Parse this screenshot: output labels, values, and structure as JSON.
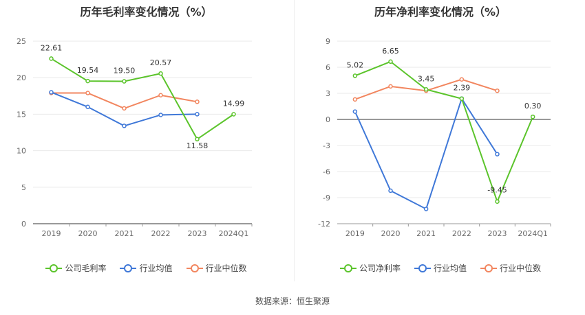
{
  "colors": {
    "company": "#5bc42b",
    "industry_avg": "#3f78d8",
    "industry_median": "#f2865f",
    "grid": "#e8e8e8",
    "axis": "#666666"
  },
  "source": "数据来源：恒生聚源",
  "chart_data": [
    {
      "type": "line",
      "title": "历年毛利率变化情况（%）",
      "categories": [
        "2019",
        "2020",
        "2021",
        "2022",
        "2023",
        "2024Q1"
      ],
      "ylim": [
        0,
        25
      ],
      "yticks": [
        0,
        5,
        10,
        15,
        20,
        25
      ],
      "grid": true,
      "legend_position": "bottom",
      "series": [
        {
          "name": "公司毛利率",
          "color_key": "company",
          "values": [
            22.61,
            19.54,
            19.5,
            20.57,
            11.58,
            14.99
          ],
          "labels": [
            "22.61",
            "19.54",
            "19.50",
            "20.57",
            "11.58",
            "14.99"
          ]
        },
        {
          "name": "行业均值",
          "color_key": "industry_avg",
          "values": [
            18.0,
            16.0,
            13.4,
            14.9,
            15.0,
            null
          ]
        },
        {
          "name": "行业中位数",
          "color_key": "industry_median",
          "values": [
            17.9,
            17.9,
            15.8,
            17.6,
            16.7,
            null
          ]
        }
      ]
    },
    {
      "type": "line",
      "title": "历年净利率变化情况（%）",
      "categories": [
        "2019",
        "2020",
        "2021",
        "2022",
        "2023",
        "2024Q1"
      ],
      "ylim": [
        -12,
        9
      ],
      "yticks": [
        -12,
        -9,
        -6,
        -3,
        0,
        3,
        6,
        9
      ],
      "grid": true,
      "legend_position": "bottom",
      "series": [
        {
          "name": "公司净利率",
          "color_key": "company",
          "values": [
            5.02,
            6.65,
            3.45,
            2.39,
            -9.45,
            0.3
          ],
          "labels": [
            "5.02",
            "6.65",
            "3.45",
            "2.39",
            "-9.45",
            "0.30"
          ]
        },
        {
          "name": "行业均值",
          "color_key": "industry_avg",
          "values": [
            0.9,
            -8.2,
            -10.3,
            2.4,
            -4.0,
            null
          ]
        },
        {
          "name": "行业中位数",
          "color_key": "industry_median",
          "values": [
            2.3,
            3.8,
            3.3,
            4.6,
            3.3,
            null
          ]
        }
      ]
    }
  ]
}
